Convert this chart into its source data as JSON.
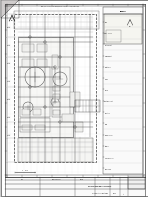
{
  "bg_color": "#cccccc",
  "page_color": "#ffffff",
  "drawing_color": "#f0eff0",
  "border_color": "#333333",
  "line_color": "#444444",
  "med_line": "#666666",
  "light_line": "#999999",
  "very_light": "#bbbbbb",
  "fold_color": "#e0dede",
  "title": "MD 212 0000 EG PI DPP 0010",
  "subtitle": "Process Area Plot Plan"
}
